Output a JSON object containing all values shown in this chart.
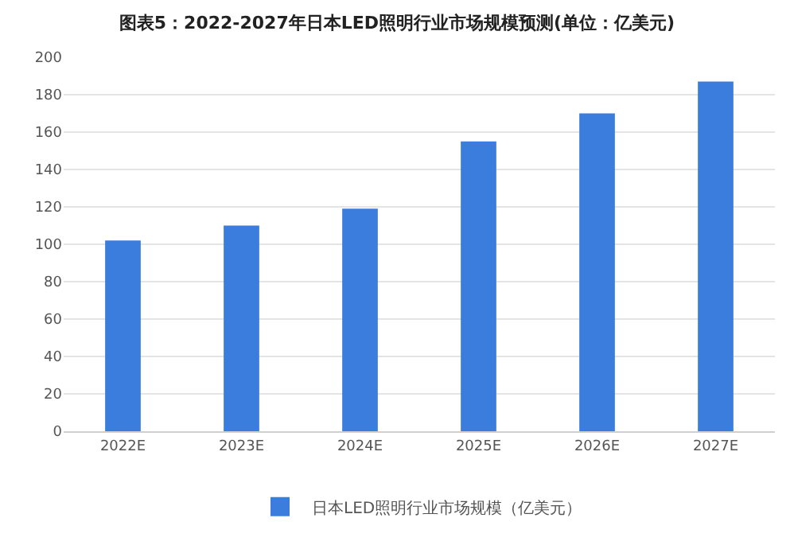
{
  "chart_data": {
    "type": "bar",
    "title": "图表5：2022-2027年日本LED照明行业市场规模预测(单位：亿美元)",
    "categories": [
      "2022E",
      "2023E",
      "2024E",
      "2025E",
      "2026E",
      "2027E"
    ],
    "series": [
      {
        "name": "日本LED照明行业市场规模（亿美元）",
        "color": "#3b7ddd",
        "values": [
          102,
          110,
          119,
          155,
          170,
          187
        ]
      }
    ],
    "ylim": [
      0,
      200
    ],
    "yticks": [
      0,
      20,
      40,
      60,
      80,
      100,
      120,
      140,
      160,
      180,
      200
    ],
    "grid": "y",
    "legend": "bottom"
  }
}
